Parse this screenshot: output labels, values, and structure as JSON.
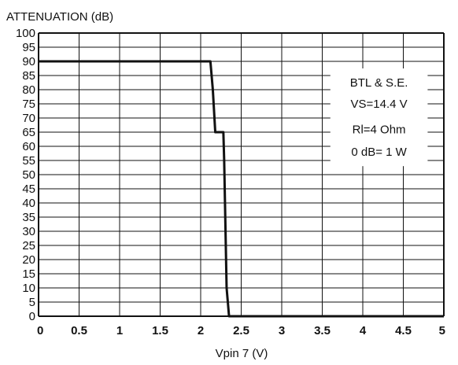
{
  "chart_data": {
    "type": "line",
    "title": "",
    "ylabel": "ATTENUATION (dB)",
    "xlabel": "Vpin 7 (V)",
    "xlim": [
      0,
      5
    ],
    "ylim": [
      0,
      100
    ],
    "grid": true,
    "x_ticks": [
      "0",
      "0.5",
      "1",
      "1.5",
      "2",
      "2.5",
      "3",
      "3.5",
      "4",
      "4.5",
      "5"
    ],
    "y_ticks": [
      "0",
      "5",
      "10",
      "15",
      "20",
      "25",
      "30",
      "35",
      "40",
      "45",
      "50",
      "55",
      "60",
      "65",
      "70",
      "75",
      "80",
      "85",
      "90",
      "95",
      "100"
    ],
    "series": [
      {
        "x": [
          0,
          2.12,
          2.15,
          2.18,
          2.28,
          2.29,
          2.32,
          2.35,
          5
        ],
        "y": [
          90,
          90,
          80,
          65,
          65,
          55,
          10,
          0,
          0
        ]
      }
    ],
    "annotations": [
      "BTL & S.E.",
      "VS=14.4 V",
      "Rl=4 Ohm",
      "0 dB= 1 W"
    ],
    "line_color": "#111111",
    "grid_color": "#111111"
  }
}
